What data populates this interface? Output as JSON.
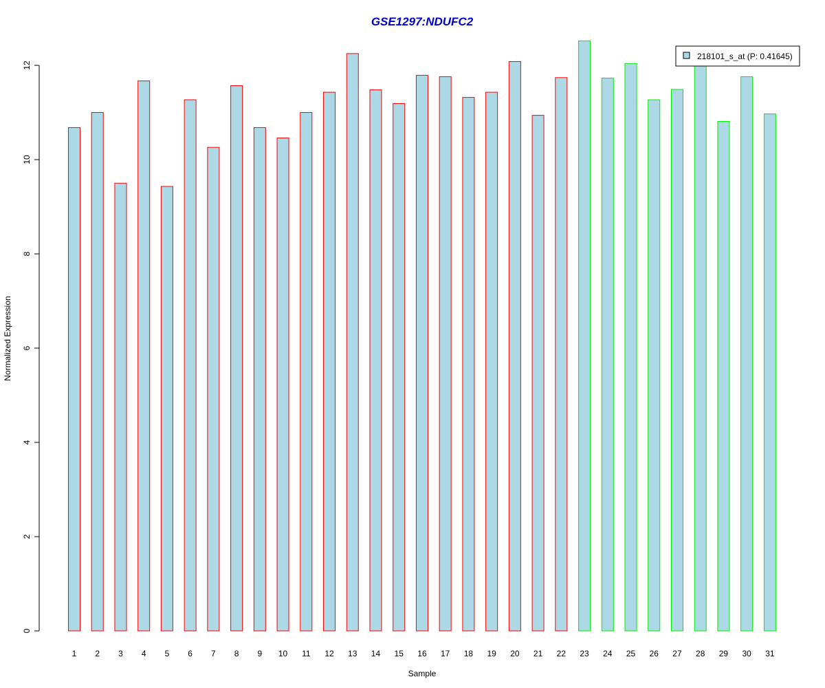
{
  "chart_data": {
    "type": "bar",
    "title": "GSE1297:NDUFC2",
    "xlabel": "Sample",
    "ylabel": "Normalized Expression",
    "categories": [
      "1",
      "2",
      "3",
      "4",
      "5",
      "6",
      "7",
      "8",
      "9",
      "10",
      "11",
      "12",
      "13",
      "14",
      "15",
      "16",
      "17",
      "18",
      "19",
      "20",
      "21",
      "22",
      "23",
      "24",
      "25",
      "26",
      "27",
      "28",
      "29",
      "30",
      "31"
    ],
    "series": [
      {
        "name": "218101_s_at (P: 0.41645)",
        "values": [
          10.68,
          11.0,
          9.5,
          11.67,
          9.43,
          11.27,
          10.26,
          11.57,
          10.68,
          10.46,
          11.0,
          11.43,
          12.25,
          11.48,
          11.19,
          11.79,
          11.76,
          11.32,
          11.43,
          12.08,
          10.94,
          11.74,
          12.52,
          11.73,
          12.04,
          11.27,
          11.49,
          12.08,
          10.81,
          11.76,
          10.97
        ]
      }
    ],
    "group_index": [
      0,
      0,
      0,
      0,
      0,
      0,
      0,
      0,
      0,
      0,
      0,
      0,
      0,
      0,
      0,
      0,
      0,
      0,
      0,
      0,
      0,
      0,
      1,
      1,
      1,
      1,
      1,
      1,
      1,
      1,
      1
    ],
    "group_border_colors": [
      "#ff0000",
      "#00ee00"
    ],
    "fill_color": "#add8e6",
    "yticks": [
      0,
      2,
      4,
      6,
      8,
      10,
      12
    ],
    "ylim": [
      0,
      12.6
    ],
    "legend_position": "top-right",
    "grid": false
  }
}
